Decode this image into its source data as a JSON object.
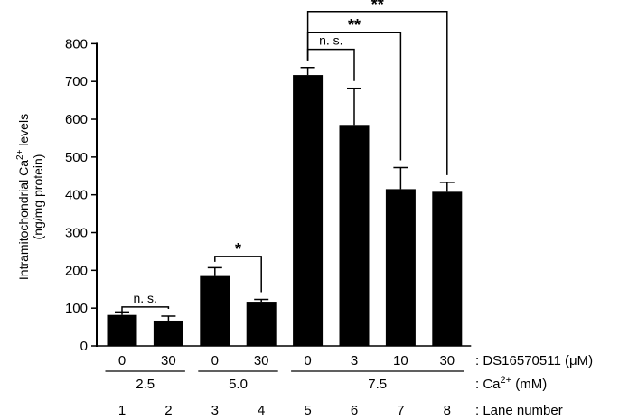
{
  "chart_data": {
    "type": "bar",
    "ylabel_line1": "Intramitochondrial Ca",
    "ylabel_sup": "2+",
    "ylabel_line1_tail": " levels",
    "ylabel_line2": "(ng/mg protein)",
    "ylim": [
      0,
      800
    ],
    "yticks": [
      "0",
      "100",
      "200",
      "300",
      "400",
      "500",
      "600",
      "700",
      "800"
    ],
    "bars": [
      {
        "lane": "1",
        "ds": "0",
        "value": 82,
        "err": 8
      },
      {
        "lane": "2",
        "ds": "30",
        "value": 67,
        "err": 12
      },
      {
        "lane": "3",
        "ds": "0",
        "value": 185,
        "err": 22
      },
      {
        "lane": "4",
        "ds": "30",
        "value": 117,
        "err": 6
      },
      {
        "lane": "5",
        "ds": "0",
        "value": 717,
        "err": 20
      },
      {
        "lane": "6",
        "ds": "3",
        "value": 585,
        "err": 97
      },
      {
        "lane": "7",
        "ds": "10",
        "value": 415,
        "err": 57
      },
      {
        "lane": "8",
        "ds": "30",
        "value": 408,
        "err": 25
      }
    ],
    "ca_groups": [
      {
        "label": "2.5",
        "lanes": [
          1,
          2
        ]
      },
      {
        "label": "5.0",
        "lanes": [
          3,
          4
        ]
      },
      {
        "label": "7.5",
        "lanes": [
          5,
          8
        ]
      }
    ],
    "row_labels": {
      "ds_prefix": ": DS16570511 (",
      "ds_unit": "μM",
      "ds_suffix": ")",
      "ca_prefix": ": Ca",
      "ca_sup": "2+",
      "ca_suffix": " (mM)",
      "lane": ": Lane number"
    },
    "comparisons": [
      {
        "from": 1,
        "to": 2,
        "label": "n. s.",
        "level": 103
      },
      {
        "from": 3,
        "to": 4,
        "label": "*",
        "level": 237
      },
      {
        "from": 5,
        "to": 6,
        "label": "n. s.",
        "level": 785
      },
      {
        "from": 5,
        "to": 7,
        "label": "**",
        "level": 830
      },
      {
        "from": 5,
        "to": 8,
        "label": "**",
        "level": 885
      }
    ]
  }
}
